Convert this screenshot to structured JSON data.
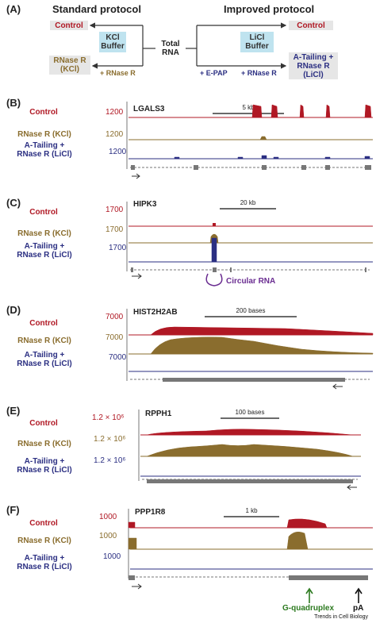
{
  "panel_a": {
    "label": "(A)",
    "standard_header": "Standard protocol",
    "improved_header": "Improved protocol",
    "control_left": "Control",
    "kcl_buffer": "KCl Buffer",
    "total_rna": "Total RNA",
    "rnase_r_kcl_box": "RNase R (KCl)",
    "plus_rnase_r_left": "+ RNase R",
    "licl_buffer": "LiCl Buffer",
    "control_right": "Control",
    "plus_epap": "+ E-PAP",
    "plus_rnase_r_right": "+ RNase R",
    "atailing_box": "A-Tailing + RNase R (LiCl)"
  },
  "panels": [
    {
      "label": "(B)",
      "gene": "LGALS3",
      "scale": "5 kb",
      "ymax": [
        "1200",
        "1200",
        "1200"
      ]
    },
    {
      "label": "(C)",
      "gene": "HIPK3",
      "scale": "20 kb",
      "ymax": [
        "1700",
        "1700",
        "1700"
      ],
      "annotation": "Circular RNA"
    },
    {
      "label": "(D)",
      "gene": "HIST2H2AB",
      "scale": "200 bases",
      "ymax": [
        "7000",
        "7000",
        "7000"
      ]
    },
    {
      "label": "(E)",
      "gene": "RPPH1",
      "scale": "100 bases",
      "ymax": [
        "1.2 × 10⁶",
        "1.2 × 10⁶",
        "1.2 × 10⁶"
      ]
    },
    {
      "label": "(F)",
      "gene": "PPP1R8",
      "scale": "1 kb",
      "ymax": [
        "1000",
        "1000",
        "1000"
      ],
      "annotation_g4": "G-quadruplex",
      "annotation_pa": "pA"
    }
  ],
  "track_labels": {
    "control": "Control",
    "rnase_kcl": "RNase R (KCl)",
    "atail_line1": "A-Tailing +",
    "atail_line2": "RNase R (LiCl)"
  },
  "colors": {
    "control": "#b01824",
    "rnase_kcl": "#8a6d2e",
    "atail": "#2b2f82",
    "box_gray": "#e6e6e6",
    "box_blue": "#bfe3ef",
    "annotation_green": "#2c7a1f",
    "annotation_purple": "#6a2d91"
  },
  "footer": "Trends in Cell Biology"
}
